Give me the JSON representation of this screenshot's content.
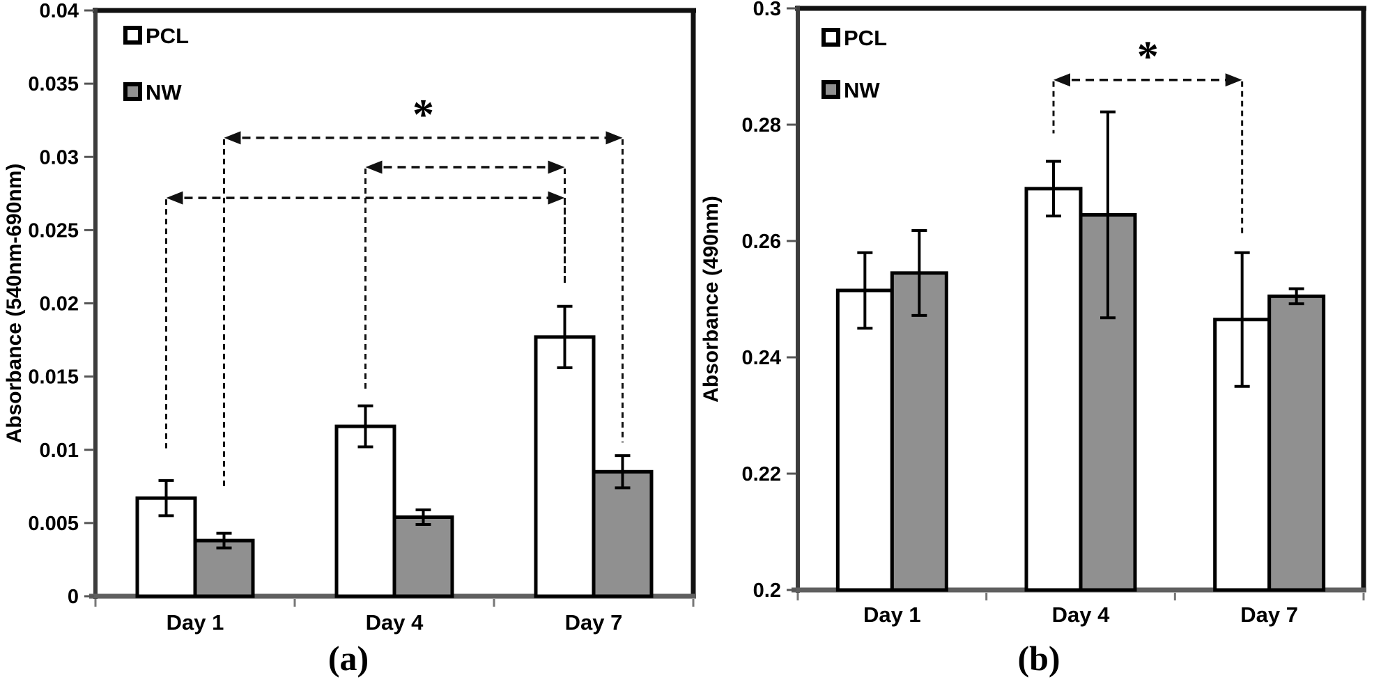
{
  "figure": {
    "background": "#ffffff",
    "bar_border_color": "#000000",
    "annotation_color": "#111111",
    "panel_captions": [
      "(a)",
      "(b)"
    ]
  },
  "chart_data": [
    {
      "id": "a",
      "type": "bar",
      "title": "",
      "caption": "(a)",
      "xlabel": "",
      "ylabel": "Absorbance (540nm-690nm)",
      "categories": [
        "Day 1",
        "Day 4",
        "Day 7"
      ],
      "series": [
        {
          "name": "PCL",
          "fill": "#ffffff",
          "values": [
            0.0067,
            0.0116,
            0.0177
          ],
          "errors": [
            0.0012,
            0.0014,
            0.0021
          ]
        },
        {
          "name": "NW",
          "fill": "#909090",
          "values": [
            0.0038,
            0.0054,
            0.0085
          ],
          "errors": [
            0.0005,
            0.0005,
            0.0011
          ]
        }
      ],
      "ylim": [
        0,
        0.04
      ],
      "ytick_step": 0.005,
      "ytick_labels": [
        "0",
        "0.005",
        "0.01",
        "0.015",
        "0.02",
        "0.025",
        "0.03",
        "0.035",
        "0.04"
      ],
      "grid": false,
      "legend_position": "top-left-inside",
      "significance": [
        {
          "symbol": "*",
          "y": 0.0313,
          "from": {
            "cat": 0,
            "series": "NW"
          },
          "to": {
            "cat": 2,
            "series": "NW"
          },
          "drop_from_y": 0.0073,
          "drop_to_y": 0.0105
        },
        {
          "symbol": "",
          "y": 0.0293,
          "from": {
            "cat": 1,
            "series": "PCL"
          },
          "to": {
            "cat": 2,
            "series": "PCL"
          },
          "drop_from_y": 0.0141,
          "drop_to_y": 0.0213
        },
        {
          "symbol": "",
          "y": 0.0272,
          "from": {
            "cat": 0,
            "series": "PCL"
          },
          "to": {
            "cat": 2,
            "series": "PCL"
          },
          "drop_from_y": 0.0101,
          "drop_to_y": 0.0213
        }
      ]
    },
    {
      "id": "b",
      "type": "bar",
      "title": "",
      "caption": "(b)",
      "xlabel": "",
      "ylabel": "Absorbance (490nm)",
      "categories": [
        "Day 1",
        "Day 4",
        "Day 7"
      ],
      "series": [
        {
          "name": "PCL",
          "fill": "#ffffff",
          "values": [
            0.2515,
            0.269,
            0.2465
          ],
          "errors": [
            0.0065,
            0.0047,
            0.0115
          ]
        },
        {
          "name": "NW",
          "fill": "#909090",
          "values": [
            0.2545,
            0.2645,
            0.2505
          ],
          "errors": [
            0.0073,
            0.0177,
            0.0013
          ]
        }
      ],
      "ylim": [
        0.2,
        0.3
      ],
      "ytick_step": 0.02,
      "ytick_labels": [
        "0.2",
        "0.22",
        "0.24",
        "0.26",
        "0.28",
        "0.3"
      ],
      "grid": false,
      "legend_position": "top-left-inside",
      "significance": [
        {
          "symbol": "*",
          "y": 0.2877,
          "from": {
            "cat": 1,
            "series": "PCL"
          },
          "to": {
            "cat": 2,
            "series": "PCL"
          },
          "drop_from_y": 0.2785,
          "drop_to_y": 0.261
        }
      ]
    }
  ]
}
